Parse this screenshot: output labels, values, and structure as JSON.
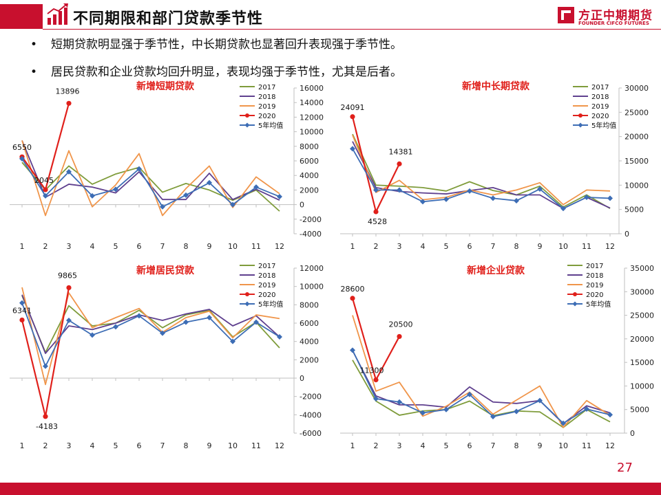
{
  "header": {
    "title": "不同期限和部门贷款季节性",
    "logo_cn": "方正中期期货",
    "logo_en": "FOUNDER CIFCO FUTURES"
  },
  "bullets": [
    "短期贷款明显强于季节性，中长期贷款也显著回升表现强于季节性。",
    "居民贷款和企业贷款均回升明显，表现均强于季节性，尤其是后者。"
  ],
  "page_number": "27",
  "colors": {
    "brand_red": "#c8102e",
    "s2017": "#7f9c3b",
    "s2018": "#5e3f8e",
    "s2019": "#f0954a",
    "s2020": "#e0201b",
    "avg": "#3d6db5"
  },
  "chart_data": [
    {
      "type": "line",
      "title": "新增短期贷款",
      "categories": [
        "1",
        "2",
        "3",
        "4",
        "5",
        "6",
        "7",
        "8",
        "9",
        "10",
        "11",
        "12"
      ],
      "ylim": [
        -4000,
        16000
      ],
      "yticks": [
        "-4000",
        "-2000",
        "0",
        "2000",
        "4000",
        "6000",
        "8000",
        "10000",
        "12000",
        "14000",
        "16000"
      ],
      "legend_position": "top-right",
      "series": [
        {
          "name": "2017",
          "values": [
            5800,
            2000,
            5300,
            2800,
            4200,
            5100,
            1700,
            2900,
            2000,
            600,
            2000,
            -900
          ]
        },
        {
          "name": "2018",
          "values": [
            8800,
            1000,
            2800,
            2400,
            1600,
            4500,
            700,
            700,
            4300,
            700,
            2100,
            600
          ]
        },
        {
          "name": "2019",
          "values": [
            8800,
            -1500,
            7400,
            -300,
            2700,
            7000,
            -1500,
            2200,
            5300,
            -400,
            3800,
            1500
          ]
        },
        {
          "name": "2020",
          "values": [
            6550,
            2045,
            13896
          ]
        },
        {
          "name": "5年均值",
          "values": [
            6300,
            1200,
            4500,
            1200,
            2100,
            4900,
            -300,
            1300,
            3000,
            0,
            2400,
            1100
          ]
        }
      ],
      "labels": [
        {
          "text": "6550",
          "index": 0,
          "value": 6550
        },
        {
          "text": "2045",
          "index": 1,
          "value": 2045
        },
        {
          "text": "13896",
          "index": 2,
          "value": 13896
        }
      ]
    },
    {
      "type": "line",
      "title": "新增中长期贷款",
      "categories": [
        "1",
        "2",
        "3",
        "4",
        "5",
        "6",
        "7",
        "8",
        "9",
        "10",
        "11",
        "12"
      ],
      "ylim": [
        0,
        30000
      ],
      "yticks": [
        "0",
        "5000",
        "10000",
        "15000",
        "20000",
        "25000",
        "30000"
      ],
      "legend_position": "top-right",
      "series": [
        {
          "name": "2017",
          "values": [
            20500,
            10000,
            9800,
            9500,
            8800,
            10700,
            8900,
            8000,
            9800,
            5500,
            8000,
            5200
          ]
        },
        {
          "name": "2018",
          "values": [
            19000,
            9500,
            8700,
            8400,
            8200,
            8900,
            9500,
            8000,
            8000,
            5200,
            7500,
            5300
          ]
        },
        {
          "name": "2019",
          "values": [
            20300,
            8500,
            11000,
            7000,
            7500,
            9000,
            8000,
            9000,
            10500,
            6000,
            9000,
            8800
          ]
        },
        {
          "name": "2020",
          "values": [
            24091,
            4528,
            14381
          ]
        },
        {
          "name": "5年均值",
          "values": [
            17500,
            9000,
            9000,
            6600,
            7100,
            8800,
            7300,
            6800,
            9200,
            5200,
            7500,
            7300
          ]
        }
      ],
      "labels": [
        {
          "text": "24091",
          "index": 0,
          "value": 24091
        },
        {
          "text": "4528",
          "index": 1,
          "value": 4528
        },
        {
          "text": "14381",
          "index": 2,
          "value": 14381
        }
      ]
    },
    {
      "type": "line",
      "title": "新增居民贷款",
      "categories": [
        "1",
        "2",
        "3",
        "4",
        "5",
        "6",
        "7",
        "8",
        "9",
        "10",
        "11",
        "12"
      ],
      "ylim": [
        -6000,
        12000
      ],
      "yticks": [
        "-6000",
        "-4000",
        "-2000",
        "0",
        "2000",
        "4000",
        "6000",
        "8000",
        "10000",
        "12000"
      ],
      "legend_position": "top-right",
      "series": [
        {
          "name": "2017",
          "values": [
            9000,
            2800,
            7900,
            5700,
            6000,
            7400,
            5500,
            6900,
            7400,
            4500,
            6100,
            3300
          ]
        },
        {
          "name": "2018",
          "values": [
            9100,
            2700,
            5700,
            5300,
            6000,
            6900,
            6300,
            7000,
            7500,
            5700,
            6800,
            4500
          ]
        },
        {
          "name": "2019",
          "values": [
            9900,
            -700,
            9300,
            5500,
            6600,
            7600,
            5000,
            6600,
            7300,
            4400,
            6900,
            6500
          ]
        },
        {
          "name": "2020",
          "values": [
            6341,
            -4183,
            9865
          ]
        },
        {
          "name": "5年均值",
          "values": [
            8200,
            1300,
            6300,
            4700,
            5600,
            6800,
            4900,
            6100,
            6600,
            4000,
            6100,
            4500
          ]
        }
      ],
      "labels": [
        {
          "text": "6341",
          "index": 0,
          "value": 6341
        },
        {
          "text": "-4183",
          "index": 1,
          "value": -4183
        },
        {
          "text": "9865",
          "index": 2,
          "value": 9865
        }
      ]
    },
    {
      "type": "line",
      "title": "新增企业贷款",
      "categories": [
        "1",
        "2",
        "3",
        "4",
        "5",
        "6",
        "7",
        "8",
        "9",
        "10",
        "11",
        "12"
      ],
      "ylim": [
        0,
        35000
      ],
      "yticks": [
        "0",
        "5000",
        "10000",
        "15000",
        "20000",
        "25000",
        "30000",
        "35000"
      ],
      "legend_position": "top-right",
      "series": [
        {
          "name": "2017",
          "values": [
            15500,
            6800,
            3800,
            4700,
            5000,
            6800,
            3700,
            4700,
            4500,
            1200,
            5000,
            2400
          ]
        },
        {
          "name": "2018",
          "values": [
            17500,
            7900,
            6000,
            6000,
            5500,
            9800,
            6600,
            6300,
            6900,
            2000,
            5800,
            4300
          ]
        },
        {
          "name": "2019",
          "values": [
            25000,
            8900,
            10800,
            3600,
            5700,
            8700,
            4000,
            7000,
            10000,
            1200,
            6900,
            3800
          ]
        },
        {
          "name": "2020",
          "values": [
            28600,
            11300,
            20500
          ]
        },
        {
          "name": "5年均值",
          "values": [
            17600,
            7300,
            6600,
            4300,
            5000,
            8200,
            3500,
            4600,
            6900,
            2100,
            5100,
            3900
          ]
        }
      ],
      "labels": [
        {
          "text": "28600",
          "index": 0,
          "value": 28600
        },
        {
          "text": "11300",
          "index": 1,
          "value": 11300
        },
        {
          "text": "20500",
          "index": 2,
          "value": 20500
        }
      ]
    }
  ]
}
